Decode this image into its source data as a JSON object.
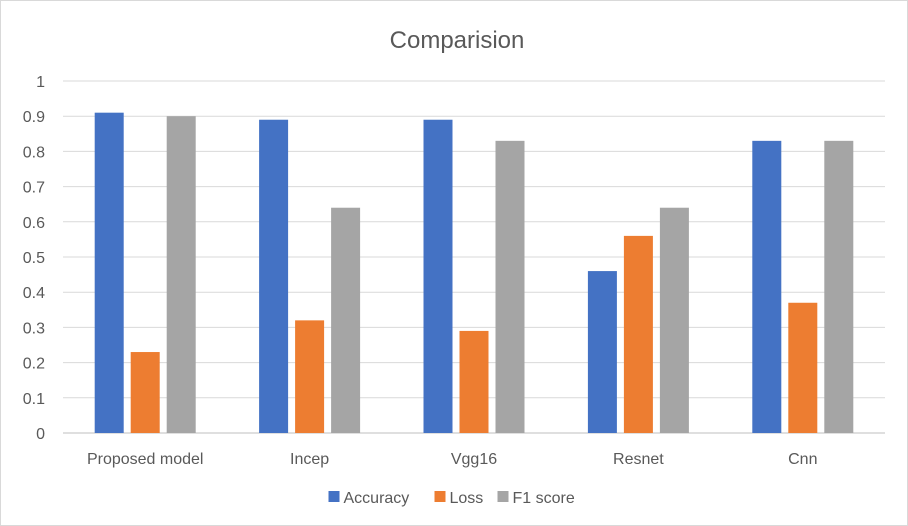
{
  "chart_data": {
    "type": "bar",
    "title": "Comparision",
    "categories": [
      "Proposed model",
      "Incep",
      "Vgg16",
      "Resnet",
      "Cnn"
    ],
    "series": [
      {
        "name": "Accuracy",
        "values": [
          0.91,
          0.89,
          0.89,
          0.46,
          0.83
        ],
        "color": "#4472c4"
      },
      {
        "name": "Loss",
        "values": [
          0.23,
          0.32,
          0.29,
          0.56,
          0.37
        ],
        "color": "#ed7d31"
      },
      {
        "name": "F1 score",
        "values": [
          0.9,
          0.64,
          0.83,
          0.64,
          0.83
        ],
        "color": "#a5a5a5"
      }
    ],
    "ylim": [
      0,
      1
    ],
    "yticks": [
      "0",
      "0.1",
      "0.2",
      "0.3",
      "0.4",
      "0.5",
      "0.6",
      "0.7",
      "0.8",
      "0.9",
      "1"
    ],
    "grid": true,
    "legend_position": "bottom"
  }
}
